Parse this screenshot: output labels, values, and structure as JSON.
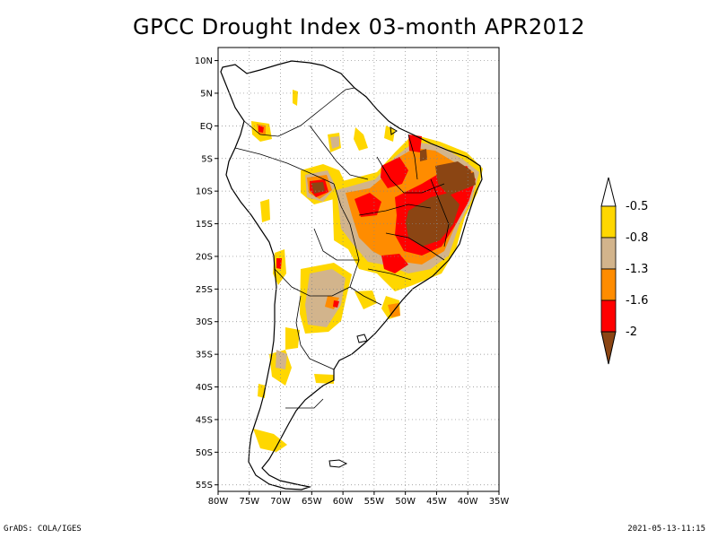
{
  "title": "GPCC Drought Index 03-month APR2012",
  "footer": {
    "left": "GrADS: COLA/IGES",
    "right": "2021-05-13-11:15"
  },
  "map": {
    "lat_labels": [
      "10N",
      "5N",
      "EQ",
      "5S",
      "10S",
      "15S",
      "20S",
      "25S",
      "30S",
      "35S",
      "40S",
      "45S",
      "50S",
      "55S"
    ],
    "lon_labels": [
      "80W",
      "75W",
      "70W",
      "65W",
      "60W",
      "55W",
      "50W",
      "45W",
      "40W",
      "35W"
    ],
    "grid": "dotted",
    "lon_range": [
      -80,
      -35
    ],
    "lat_range": [
      -56,
      12
    ]
  },
  "legend": {
    "labels": [
      "-0.5",
      "-0.8",
      "-1.3",
      "-1.6",
      "-2"
    ],
    "colors": {
      "yellow": "#ffd700",
      "tan": "#d2b48c",
      "orange": "#ff8c00",
      "red": "#ff0000",
      "brown": "#8b4513"
    }
  }
}
